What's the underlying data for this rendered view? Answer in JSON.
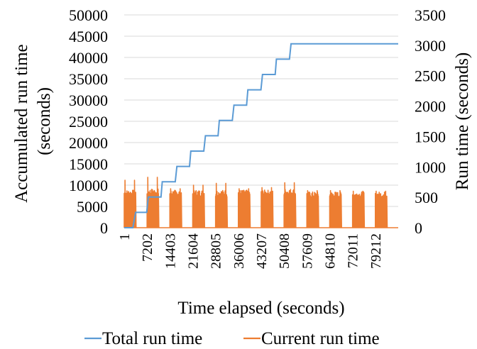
{
  "chart_data": {
    "type": "line",
    "xlabel": "Time elapsed (seconds)",
    "ylabel_left": "Accumulated run time (seconds)",
    "ylabel_left_lines": [
      "Accumulated run time",
      "(seconds)"
    ],
    "ylabel_right": "Run time (seconds)",
    "x_tick_labels": [
      "1",
      "7202",
      "14403",
      "21604",
      "28805",
      "36006",
      "43207",
      "50408",
      "57609",
      "64810",
      "72011",
      "79212"
    ],
    "xlim": [
      1,
      86400
    ],
    "ylim_left": [
      0,
      50000
    ],
    "ylim_right": [
      0,
      3500
    ],
    "y_ticks_left": [
      "0",
      "5000",
      "10000",
      "15000",
      "20000",
      "25000",
      "30000",
      "35000",
      "40000",
      "45000",
      "50000"
    ],
    "y_ticks_right": [
      "0",
      "500",
      "1000",
      "1500",
      "2000",
      "2500",
      "3000",
      "3500"
    ],
    "grid": "horizontal",
    "legend_position": "bottom",
    "colors": {
      "total": "#5b9bd5",
      "current": "#ed7d31",
      "grid": "#d9d9d9"
    },
    "series": [
      {
        "name": "Total run time",
        "axis": "left",
        "color": "#5b9bd5",
        "x": [
          1,
          2700,
          3600,
          4500,
          6500,
          7100,
          7600,
          8600,
          10800,
          11600,
          12000,
          13000,
          15500,
          16100,
          16600,
          17600,
          19800,
          20600,
          21000,
          22000,
          24500,
          25100,
          25600,
          26600,
          28800,
          29600,
          30000,
          31000,
          33500,
          34100,
          34600,
          35600,
          37800,
          38600,
          39000,
          40000,
          42500,
          43100,
          43600,
          44600,
          46800,
          47600,
          48000,
          49000,
          51500,
          52100,
          52600,
          53600,
          55800,
          56600,
          57000,
          58000,
          60500,
          61100,
          61600,
          62600,
          64800,
          65600,
          66000,
          67000,
          69500,
          70100,
          70600,
          71600,
          73800,
          74600,
          75000,
          76000,
          78500,
          79100,
          79600,
          80600,
          82800,
          83600,
          84000,
          85000,
          86400
        ],
        "y": [
          0,
          0,
          3600,
          3600,
          3600,
          3600,
          7200,
          7200,
          7200,
          7200,
          10800,
          10800,
          10800,
          10800,
          14400,
          14400,
          14400,
          14400,
          18000,
          18000,
          18000,
          18000,
          21600,
          21600,
          21600,
          21600,
          25200,
          25200,
          25200,
          25200,
          28800,
          28800,
          28800,
          28800,
          32400,
          32400,
          32400,
          32400,
          36000,
          36000,
          36000,
          36000,
          39600,
          39600,
          39600,
          39600,
          43200,
          43200,
          43200,
          43200,
          43200,
          43200,
          43200,
          43200,
          43200,
          43200,
          43200,
          43200,
          43200,
          43200,
          43200,
          43200,
          43200,
          43200,
          43200,
          43200,
          43200,
          43200,
          43200,
          43200,
          43200,
          43200,
          43200,
          43200,
          43200,
          43200,
          43200
        ]
      },
      {
        "name": "Current run time",
        "axis": "right",
        "color": "#ed7d31",
        "bursts": [
          {
            "start": 1,
            "end": 3600,
            "peak": 620,
            "max": 780
          },
          {
            "start": 7200,
            "end": 10800,
            "peak": 640,
            "max": 830
          },
          {
            "start": 14400,
            "end": 18000,
            "peak": 620,
            "max": 640
          },
          {
            "start": 21600,
            "end": 25200,
            "peak": 620,
            "max": 700
          },
          {
            "start": 28800,
            "end": 32400,
            "peak": 620,
            "max": 730
          },
          {
            "start": 36000,
            "end": 39600,
            "peak": 620,
            "max": 640
          },
          {
            "start": 43200,
            "end": 46800,
            "peak": 620,
            "max": 660
          },
          {
            "start": 50400,
            "end": 54000,
            "peak": 640,
            "max": 740
          },
          {
            "start": 57600,
            "end": 61200,
            "peak": 590,
            "max": 610
          },
          {
            "start": 64800,
            "end": 68400,
            "peak": 590,
            "max": 610
          },
          {
            "start": 72000,
            "end": 75600,
            "peak": 590,
            "max": 600
          },
          {
            "start": 79200,
            "end": 82800,
            "peak": 590,
            "max": 600
          }
        ]
      }
    ]
  }
}
